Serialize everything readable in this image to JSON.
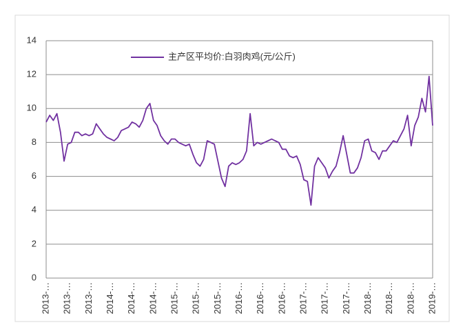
{
  "chart_data": {
    "type": "line",
    "categories": [
      "2013-…",
      null,
      null,
      null,
      null,
      null,
      "2013-…",
      null,
      null,
      null,
      null,
      null,
      "2013-…",
      null,
      null,
      null,
      null,
      null,
      "2014-…",
      null,
      null,
      null,
      null,
      null,
      "2014-…",
      null,
      null,
      null,
      null,
      null,
      "2014-…",
      null,
      null,
      null,
      null,
      null,
      "2015-…",
      null,
      null,
      null,
      null,
      null,
      "2015-…",
      null,
      null,
      null,
      null,
      null,
      "2015-…",
      null,
      null,
      null,
      null,
      null,
      "2016-…",
      null,
      null,
      null,
      null,
      null,
      "2016-…",
      null,
      null,
      null,
      null,
      null,
      "2016-…",
      null,
      null,
      null,
      null,
      null,
      "2017-…",
      null,
      null,
      null,
      null,
      null,
      "2017-…",
      null,
      null,
      null,
      null,
      null,
      "2017-…",
      null,
      null,
      null,
      null,
      null,
      "2018-…",
      null,
      null,
      null,
      null,
      null,
      "2018-…",
      null,
      null,
      null,
      null,
      null,
      "2018-…",
      null,
      null,
      null,
      null,
      null,
      "2019-…"
    ],
    "series": [
      {
        "name": "主产区平均价:白羽肉鸡(元/公斤)",
        "color": "#7030a0",
        "values": [
          9.2,
          9.6,
          9.3,
          9.7,
          8.6,
          6.9,
          7.9,
          8.0,
          8.6,
          8.6,
          8.4,
          8.5,
          8.4,
          8.5,
          9.1,
          8.8,
          8.5,
          8.3,
          8.2,
          8.1,
          8.3,
          8.7,
          8.8,
          8.9,
          9.2,
          9.1,
          8.9,
          9.3,
          10.0,
          10.3,
          9.3,
          9.0,
          8.4,
          8.1,
          7.9,
          8.2,
          8.2,
          8.0,
          7.9,
          7.8,
          7.9,
          7.3,
          6.8,
          6.6,
          7.0,
          8.1,
          8.0,
          7.9,
          6.9,
          5.9,
          5.4,
          6.6,
          6.8,
          6.7,
          6.8,
          7.0,
          7.5,
          9.7,
          7.8,
          8.0,
          7.9,
          8.0,
          8.1,
          8.2,
          8.1,
          8.0,
          7.6,
          7.6,
          7.2,
          7.1,
          7.2,
          6.7,
          5.8,
          5.7,
          4.3,
          6.6,
          7.1,
          6.8,
          6.5,
          5.9,
          6.3,
          6.6,
          7.4,
          8.4,
          7.3,
          6.2,
          6.2,
          6.5,
          7.1,
          8.1,
          8.2,
          7.5,
          7.4,
          7.0,
          7.5,
          7.5,
          7.8,
          8.1,
          8.0,
          8.4,
          8.8,
          9.6,
          7.8,
          9.0,
          9.5,
          10.6,
          9.8,
          11.9,
          9.0
        ]
      }
    ],
    "ylim": [
      0,
      14
    ],
    "yticks": [
      0,
      2,
      4,
      6,
      8,
      10,
      12,
      14
    ],
    "grid": true
  }
}
